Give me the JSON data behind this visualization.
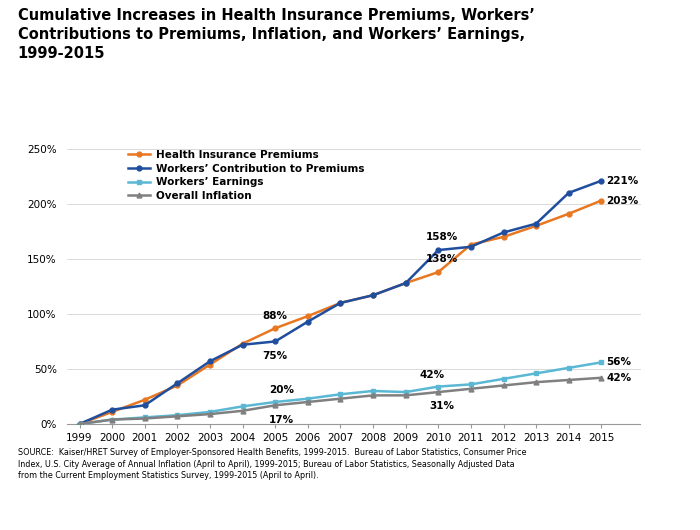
{
  "years": [
    1999,
    2000,
    2001,
    2002,
    2003,
    2004,
    2005,
    2006,
    2007,
    2008,
    2009,
    2010,
    2011,
    2012,
    2013,
    2014,
    2015
  ],
  "health_premiums": [
    0,
    11,
    22,
    35,
    54,
    73,
    87,
    98,
    110,
    117,
    128,
    138,
    163,
    170,
    180,
    191,
    203
  ],
  "workers_contribution": [
    0,
    13,
    17,
    37,
    57,
    72,
    75,
    93,
    110,
    117,
    128,
    158,
    161,
    174,
    182,
    210,
    221
  ],
  "workers_earnings": [
    0,
    4,
    6,
    8,
    11,
    16,
    20,
    23,
    27,
    30,
    29,
    34,
    36,
    41,
    46,
    51,
    56
  ],
  "overall_inflation": [
    0,
    4,
    5,
    7,
    9,
    12,
    17,
    20,
    23,
    26,
    26,
    29,
    32,
    35,
    38,
    40,
    42
  ],
  "colors": {
    "health_premiums": "#E87722",
    "workers_contribution": "#1F4E9E",
    "workers_earnings": "#5BB8D4",
    "overall_inflation": "#808080"
  },
  "title_line1": "Cumulative Increases in Health Insurance Premiums, Workers’",
  "title_line2": "Contributions to Premiums, Inflation, and Workers’ Earnings,",
  "title_line3": "1999-2015",
  "legend_labels": [
    "Health Insurance Premiums",
    "Workers’ Contribution to Premiums",
    "Workers’ Earnings",
    "Overall Inflation"
  ],
  "source_text": "SOURCE:  Kaiser/HRET Survey of Employer-Sponsored Health Benefits, 1999-2015.  Bureau of Labor Statistics, Consumer Price\nIndex, U.S. City Average of Annual Inflation (April to April), 1999-2015; Bureau of Labor Statistics, Seasonally Adjusted Data\nfrom the Current Employment Statistics Survey, 1999-2015 (April to April).",
  "ylim": [
    0,
    260
  ],
  "yticks": [
    0,
    50,
    100,
    150,
    200,
    250
  ],
  "ytick_labels": [
    "0%",
    "50%",
    "100%",
    "150%",
    "200%",
    "250%"
  ],
  "background_color": "#FFFFFF"
}
